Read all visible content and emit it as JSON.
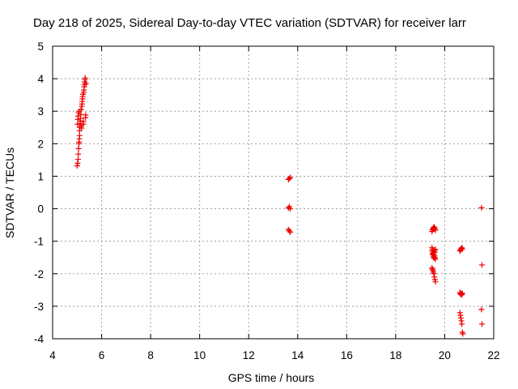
{
  "chart_data": {
    "type": "scatter",
    "title": "Day 218 of 2025, Sidereal Day-to-day VTEC variation (SDTVAR) for receiver larr",
    "xlabel": "GPS time / hours",
    "ylabel": "SDTVAR / TECUs",
    "xlim": [
      4,
      22
    ],
    "ylim": [
      -4,
      5
    ],
    "xticks": [
      "4",
      "6",
      "8",
      "10",
      "12",
      "14",
      "16",
      "18",
      "20",
      "22"
    ],
    "yticks": [
      "5",
      "4",
      "3",
      "2",
      "1",
      "0",
      "-1",
      "-2",
      "-3",
      "-4"
    ],
    "grid": true,
    "marker": "+",
    "marker_color": "#ee0000",
    "series": [
      {
        "name": "SDTVAR",
        "points": [
          [
            5.0,
            1.32
          ],
          [
            5.02,
            1.4
          ],
          [
            5.04,
            1.52
          ],
          [
            5.05,
            1.68
          ],
          [
            5.06,
            1.85
          ],
          [
            5.07,
            2.0
          ],
          [
            5.08,
            2.05
          ],
          [
            5.09,
            2.15
          ],
          [
            5.1,
            2.25
          ],
          [
            5.02,
            2.6
          ],
          [
            5.03,
            2.75
          ],
          [
            5.04,
            2.85
          ],
          [
            5.06,
            2.95
          ],
          [
            5.08,
            3.0
          ],
          [
            5.1,
            2.4
          ],
          [
            5.11,
            2.5
          ],
          [
            5.12,
            2.62
          ],
          [
            5.13,
            2.7
          ],
          [
            5.14,
            2.78
          ],
          [
            5.15,
            2.9
          ],
          [
            5.16,
            3.05
          ],
          [
            5.17,
            2.55
          ],
          [
            5.18,
            2.48
          ],
          [
            5.19,
            3.15
          ],
          [
            5.2,
            3.22
          ],
          [
            5.21,
            3.3
          ],
          [
            5.22,
            3.38
          ],
          [
            5.23,
            3.45
          ],
          [
            5.24,
            3.52
          ],
          [
            5.25,
            2.6
          ],
          [
            5.26,
            2.68
          ],
          [
            5.27,
            3.58
          ],
          [
            5.28,
            3.65
          ],
          [
            5.29,
            3.75
          ],
          [
            5.3,
            3.82
          ],
          [
            5.31,
            3.9
          ],
          [
            5.32,
            3.97
          ],
          [
            5.33,
            4.02
          ],
          [
            5.34,
            2.8
          ],
          [
            5.35,
            2.88
          ],
          [
            5.36,
            3.85
          ],
          [
            13.62,
            0.9
          ],
          [
            13.66,
            0.93
          ],
          [
            13.7,
            0.96
          ],
          [
            13.62,
            0.02
          ],
          [
            13.66,
            0.06
          ],
          [
            13.7,
            0.0
          ],
          [
            13.62,
            -0.64
          ],
          [
            13.66,
            -0.68
          ],
          [
            13.7,
            -0.72
          ],
          [
            19.48,
            -0.7
          ],
          [
            19.5,
            -0.65
          ],
          [
            19.52,
            -0.62
          ],
          [
            19.54,
            -0.58
          ],
          [
            19.56,
            -0.6
          ],
          [
            19.58,
            -0.56
          ],
          [
            19.6,
            -0.62
          ],
          [
            19.62,
            -0.66
          ],
          [
            19.48,
            -1.2
          ],
          [
            19.5,
            -1.25
          ],
          [
            19.52,
            -1.3
          ],
          [
            19.54,
            -1.35
          ],
          [
            19.56,
            -1.4
          ],
          [
            19.58,
            -1.45
          ],
          [
            19.6,
            -1.5
          ],
          [
            19.62,
            -1.55
          ],
          [
            19.48,
            -1.3
          ],
          [
            19.5,
            -1.38
          ],
          [
            19.52,
            -1.42
          ],
          [
            19.54,
            -1.48
          ],
          [
            19.56,
            -1.52
          ],
          [
            19.58,
            -1.28
          ],
          [
            19.6,
            -1.33
          ],
          [
            19.62,
            -1.25
          ],
          [
            19.48,
            -1.82
          ],
          [
            19.5,
            -1.86
          ],
          [
            19.52,
            -1.9
          ],
          [
            19.54,
            -1.95
          ],
          [
            19.56,
            -2.0
          ],
          [
            19.58,
            -2.1
          ],
          [
            19.6,
            -2.18
          ],
          [
            19.62,
            -2.25
          ],
          [
            20.62,
            -1.3
          ],
          [
            20.64,
            -1.28
          ],
          [
            20.66,
            -1.25
          ],
          [
            20.68,
            -1.22
          ],
          [
            20.7,
            -1.2
          ],
          [
            20.72,
            -1.24
          ],
          [
            20.62,
            -2.58
          ],
          [
            20.64,
            -2.62
          ],
          [
            20.66,
            -2.6
          ],
          [
            20.68,
            -2.65
          ],
          [
            20.7,
            -2.63
          ],
          [
            20.72,
            -2.6
          ],
          [
            20.62,
            -3.2
          ],
          [
            20.64,
            -3.28
          ],
          [
            20.66,
            -3.36
          ],
          [
            20.68,
            -3.45
          ],
          [
            20.7,
            -3.55
          ],
          [
            20.72,
            -3.8
          ],
          [
            20.74,
            -3.85
          ],
          [
            21.5,
            0.03
          ],
          [
            21.52,
            -1.73
          ],
          [
            21.5,
            -3.1
          ],
          [
            21.52,
            -3.55
          ]
        ]
      }
    ]
  }
}
